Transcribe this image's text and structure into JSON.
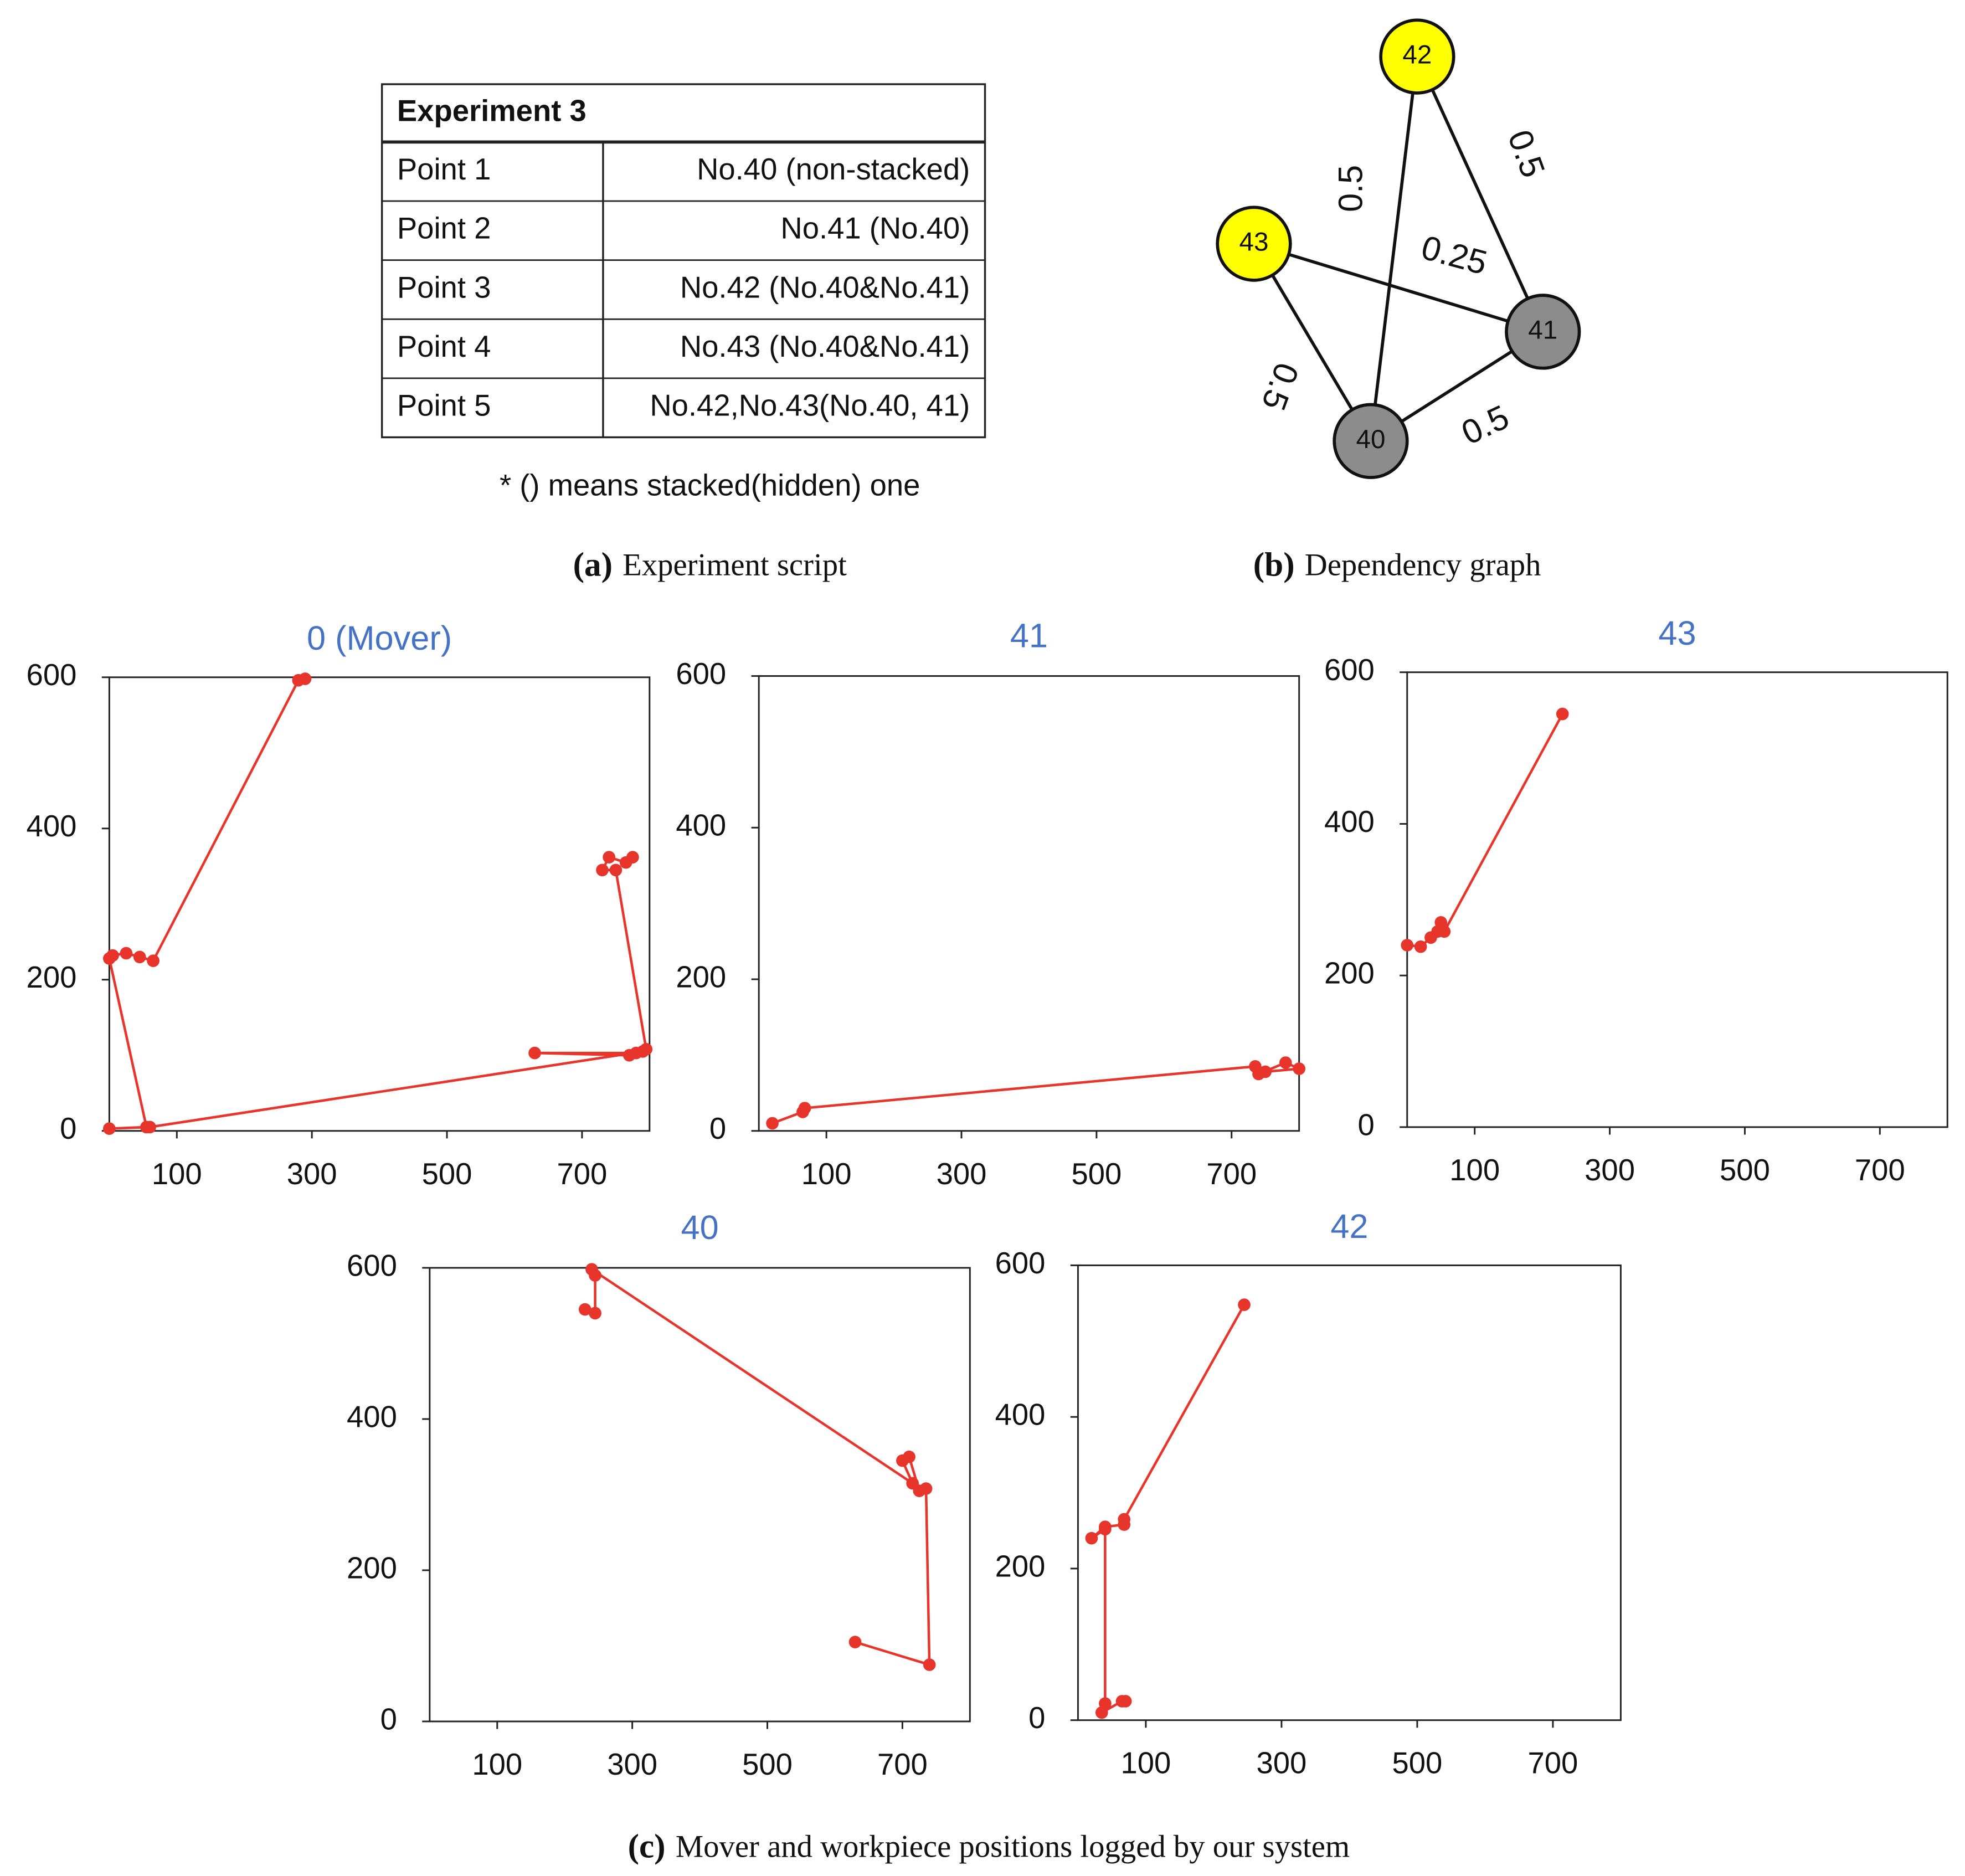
{
  "table": {
    "title": "Experiment 3",
    "rows": [
      [
        "Point 1",
        "No.40 (non-stacked)"
      ],
      [
        "Point 2",
        "No.41 (No.40)"
      ],
      [
        "Point 3",
        "No.42 (No.40&No.41)"
      ],
      [
        "Point 4",
        "No.43 (No.40&No.41)"
      ],
      [
        "Point 5",
        "No.42,No.43(No.40, 41)"
      ]
    ],
    "note": "* () means stacked(hidden) one"
  },
  "graph": {
    "nodes": [
      {
        "label": "42",
        "color": "#ffff00"
      },
      {
        "label": "43",
        "color": "#ffff00"
      },
      {
        "label": "41",
        "color": "#8c8c8c"
      },
      {
        "label": "40",
        "color": "#8c8c8c"
      }
    ],
    "edges": [
      {
        "from": 0,
        "to": 3,
        "label": "0.5"
      },
      {
        "from": 0,
        "to": 2,
        "label": "0.5"
      },
      {
        "from": 1,
        "to": 2,
        "label": "0.25"
      },
      {
        "from": 1,
        "to": 3,
        "label": "0.5"
      },
      {
        "from": 3,
        "to": 2,
        "label": "0.5"
      }
    ]
  },
  "captions": [
    {
      "label": "(a)",
      "text": "Experiment script"
    },
    {
      "label": "(b)",
      "text": "Dependency graph"
    },
    {
      "label": "(c)",
      "text": "Mover and workpiece positions logged by our system"
    }
  ],
  "chart_data": [
    {
      "type": "line",
      "title": "0 (Mover)",
      "color": "#e8352b",
      "x": [
        290,
        280,
        65,
        45,
        25,
        5,
        0,
        55,
        0,
        60,
        790,
        770,
        630,
        780,
        795,
        750,
        730,
        740,
        765,
        775
      ],
      "values": [
        598,
        596,
        225,
        230,
        235,
        232,
        228,
        5,
        3,
        5,
        105,
        100,
        103,
        103,
        108,
        345,
        345,
        362,
        355,
        362
      ],
      "xlim": [
        0,
        800
      ],
      "ylim": [
        0,
        600
      ],
      "xticks": [
        100,
        300,
        500,
        700
      ],
      "yticks": [
        0,
        200,
        400,
        600
      ]
    },
    {
      "type": "line",
      "title": "41",
      "color": "#e8352b",
      "x": [
        20,
        65,
        68,
        735,
        750,
        800,
        780,
        740
      ],
      "values": [
        10,
        25,
        30,
        85,
        78,
        82,
        90,
        75
      ],
      "xlim": [
        0,
        800
      ],
      "ylim": [
        0,
        600
      ],
      "xticks": [
        100,
        300,
        500,
        700
      ],
      "yticks": [
        0,
        200,
        400,
        600
      ]
    },
    {
      "type": "line",
      "title": "43",
      "color": "#e8352b",
      "x": [
        0,
        20,
        35,
        45,
        50,
        55,
        230
      ],
      "values": [
        240,
        238,
        250,
        258,
        270,
        258,
        545
      ],
      "xlim": [
        0,
        800
      ],
      "ylim": [
        0,
        600
      ],
      "xticks": [
        100,
        300,
        500,
        700
      ],
      "yticks": [
        0,
        200,
        400,
        600
      ]
    },
    {
      "type": "line",
      "title": "40",
      "color": "#e8352b",
      "x": [
        230,
        245,
        245,
        240,
        715,
        700,
        710,
        725,
        735,
        740,
        630
      ],
      "values": [
        545,
        540,
        590,
        598,
        315,
        345,
        350,
        305,
        308,
        75,
        105
      ],
      "xlim": [
        0,
        800
      ],
      "ylim": [
        0,
        600
      ],
      "xticks": [
        100,
        300,
        500,
        700
      ],
      "yticks": [
        0,
        200,
        400,
        600
      ]
    },
    {
      "type": "line",
      "title": "42",
      "color": "#e8352b",
      "x": [
        245,
        68,
        68,
        40,
        20,
        40,
        40,
        35,
        65,
        70
      ],
      "values": [
        548,
        265,
        258,
        255,
        240,
        252,
        22,
        10,
        25,
        25
      ],
      "xlim": [
        0,
        800
      ],
      "ylim": [
        0,
        600
      ],
      "xticks": [
        100,
        300,
        500,
        700
      ],
      "yticks": [
        0,
        200,
        400,
        600
      ]
    }
  ]
}
